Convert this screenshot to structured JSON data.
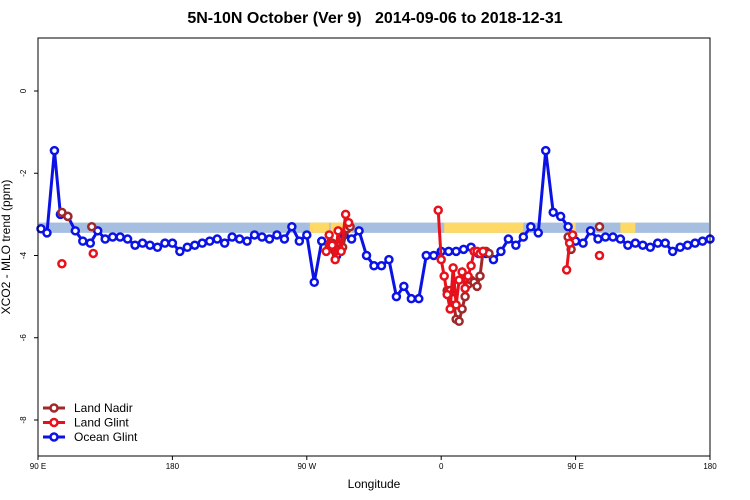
{
  "chart_data": {
    "type": "line",
    "title": "5N-10N October (Ver 9)   2014-09-06 to 2018-12-31",
    "xlabel": "Longitude",
    "ylabel": "XCO2 - MLO trend (ppm)",
    "xlim": [
      90,
      450
    ],
    "ylim": [
      -9,
      1.3
    ],
    "x_ticks": [
      90,
      180,
      270,
      360,
      450
    ],
    "x_tick_labels": [
      "90 E",
      "180",
      "90 W",
      "0",
      "90 E",
      "180"
    ],
    "x_tick_values": [
      90,
      180,
      270,
      360,
      450,
      540
    ],
    "y_ticks": [
      0,
      -2,
      -4,
      -6,
      -8
    ],
    "y_tick_labels": [
      "0",
      "-2",
      "-4",
      "-6",
      "-8"
    ],
    "legend_position": "bottom-left",
    "background_band": {
      "y_range": [
        -3.2,
        -3.45
      ],
      "color": "#a6bfe0",
      "highlight_color": "#ffd966",
      "highlight_x_ranges": [
        [
          272,
          285
        ],
        [
          286,
          300
        ],
        [
          362,
          415
        ],
        [
          445,
          450
        ],
        [
          480,
          490
        ]
      ]
    },
    "series": [
      {
        "name": "Land Nadir",
        "color": "#a0282a",
        "segments": [
          {
            "x": [
              106,
              110
            ],
            "y": [
              -2.95,
              -3.05
            ]
          },
          {
            "x": [
              126
            ],
            "y": [
              -3.3
            ]
          },
          {
            "x": [
              285,
              287,
              289,
              291,
              294,
              297,
              299
            ],
            "y": [
              -3.75,
              -3.7,
              -3.9,
              -3.85,
              -3.8,
              -3.35,
              -3.3
            ]
          },
          {
            "x": [
              364,
              366,
              368,
              370,
              372,
              374,
              376,
              378,
              380,
              382,
              384,
              386,
              388,
              390,
              392
            ],
            "y": [
              -4.85,
              -4.85,
              -5.05,
              -5.55,
              -5.6,
              -5.3,
              -5.0,
              -4.7,
              -4.6,
              -4.65,
              -4.75,
              -4.5,
              -3.9,
              -3.9,
              -3.95
            ]
          },
          {
            "x": [
              445,
              447
            ],
            "y": [
              -3.55,
              -3.85
            ]
          },
          {
            "x": [
              466
            ],
            "y": [
              -3.3
            ]
          }
        ]
      },
      {
        "name": "Land Glint",
        "color": "#e8101a",
        "segments": [
          {
            "x": [
              106
            ],
            "y": [
              -4.2
            ]
          },
          {
            "x": [
              127
            ],
            "y": [
              -3.95
            ]
          },
          {
            "x": [
              283,
              285,
              287,
              289,
              291,
              293,
              296,
              298
            ],
            "y": [
              -3.9,
              -3.5,
              -3.75,
              -4.1,
              -3.4,
              -3.9,
              -3.0,
              -3.2
            ]
          },
          {
            "x": [
              358,
              360,
              362,
              364,
              366,
              368,
              370,
              372,
              374,
              376,
              378,
              380,
              382,
              384,
              386,
              388
            ],
            "y": [
              -2.9,
              -4.1,
              -4.5,
              -4.95,
              -5.3,
              -4.3,
              -5.2,
              -4.6,
              -4.4,
              -4.8,
              -4.5,
              -4.25,
              -3.9,
              -3.9,
              -3.95,
              -3.9
            ]
          },
          {
            "x": [
              444,
              446,
              448
            ],
            "y": [
              -4.35,
              -3.7,
              -3.5
            ]
          },
          {
            "x": [
              466
            ],
            "y": [
              -4.0
            ]
          }
        ]
      },
      {
        "name": "Ocean Glint",
        "color": "#0a12e6",
        "segments": [
          {
            "x": [
              92,
              96,
              101,
              105,
              110,
              115,
              120,
              125,
              130,
              135,
              140,
              145,
              150,
              155,
              160,
              165,
              170,
              175,
              180,
              185,
              190,
              195,
              200,
              205,
              210,
              215,
              220,
              225,
              230,
              235,
              240,
              245,
              250,
              255,
              260,
              265,
              270,
              275,
              280,
              285,
              290,
              295,
              300,
              305,
              310,
              315,
              320,
              325,
              330,
              335,
              340,
              345,
              350,
              355,
              360,
              365,
              370,
              375,
              380,
              385,
              390,
              395,
              400,
              405,
              410,
              415,
              420,
              425,
              430,
              435,
              440,
              445,
              450,
              455,
              460,
              465,
              470,
              475,
              480,
              485,
              490,
              495,
              500,
              505,
              510,
              515,
              520,
              525,
              530,
              535,
              540
            ],
            "y": [
              -3.35,
              -3.45,
              -1.45,
              -3.0,
              -3.05,
              -3.4,
              -3.65,
              -3.7,
              -3.4,
              -3.6,
              -3.55,
              -3.55,
              -3.6,
              -3.75,
              -3.7,
              -3.75,
              -3.8,
              -3.7,
              -3.7,
              -3.9,
              -3.8,
              -3.75,
              -3.7,
              -3.65,
              -3.6,
              -3.7,
              -3.55,
              -3.6,
              -3.65,
              -3.5,
              -3.55,
              -3.6,
              -3.5,
              -3.6,
              -3.3,
              -3.65,
              -3.5,
              -4.65,
              -3.65,
              -3.75,
              -4.0,
              -3.5,
              -3.6,
              -3.4,
              -4.0,
              -4.25,
              -4.25,
              -4.1,
              -5.0,
              -4.75,
              -5.05,
              -5.05,
              -4.0,
              -4.0,
              -3.9,
              -3.9,
              -3.9,
              -3.85,
              -3.8,
              -3.95,
              -3.95,
              -4.1,
              -3.9,
              -3.6,
              -3.75,
              -3.55,
              -3.3,
              -3.45,
              -1.45,
              -2.95,
              -3.05,
              -3.3,
              -3.65,
              -3.7,
              -3.4,
              -3.6,
              -3.55,
              -3.55,
              -3.6,
              -3.75,
              -3.7,
              -3.75,
              -3.8,
              -3.7,
              -3.7,
              -3.9,
              -3.8,
              -3.75,
              -3.7,
              -3.65,
              -3.6
            ]
          }
        ]
      }
    ]
  }
}
